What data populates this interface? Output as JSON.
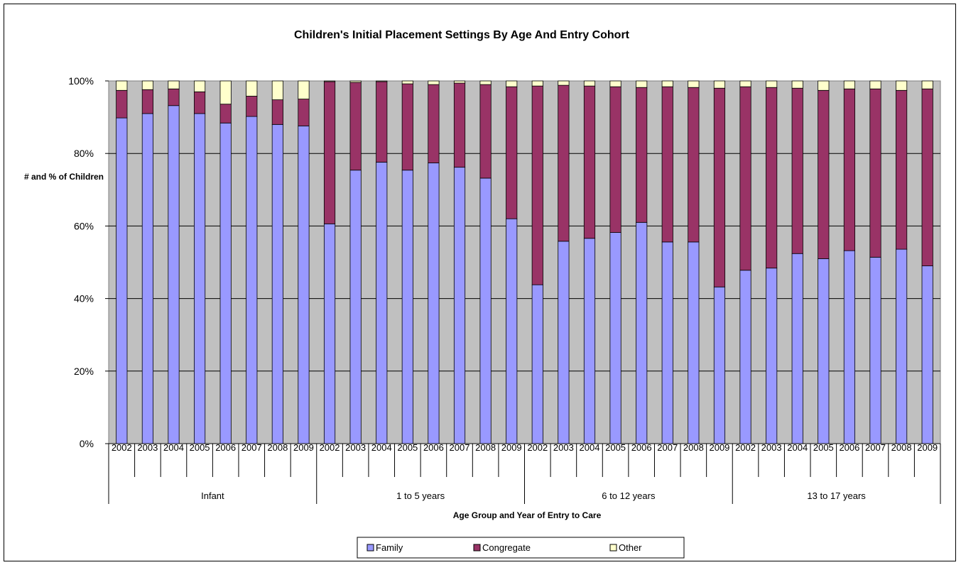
{
  "chart_data": {
    "type": "bar",
    "stacked": true,
    "percent": true,
    "title": "Children's Initial Placement Settings By Age And Entry Cohort",
    "xlabel": "Age Group and Year of Entry to Care",
    "ylabel": "# and % of Children",
    "ylim": [
      0,
      100
    ],
    "yticks": [
      "0%",
      "20%",
      "40%",
      "60%",
      "80%",
      "100%"
    ],
    "grid": true,
    "legend_position": "bottom",
    "groups": [
      {
        "label": "Infant",
        "years": [
          "2002",
          "2003",
          "2004",
          "2005",
          "2006",
          "2007",
          "2008",
          "2009"
        ]
      },
      {
        "label": "1 to 5 years",
        "years": [
          "2002",
          "2003",
          "2004",
          "2005",
          "2006",
          "2007",
          "2008",
          "2009"
        ]
      },
      {
        "label": "6 to 12 years",
        "years": [
          "2002",
          "2003",
          "2004",
          "2005",
          "2006",
          "2007",
          "2008",
          "2009"
        ]
      },
      {
        "label": "13 to 17 years",
        "years": [
          "2002",
          "2003",
          "2004",
          "2005",
          "2006",
          "2007",
          "2008",
          "2009"
        ]
      }
    ],
    "series": [
      {
        "name": "Family",
        "color": "#9999ff",
        "values": [
          89.8,
          91.0,
          93.2,
          91.0,
          88.4,
          90.2,
          88.0,
          87.6,
          60.6,
          75.4,
          77.6,
          75.4,
          77.4,
          76.2,
          73.2,
          62.0,
          43.8,
          55.8,
          56.6,
          58.2,
          61.0,
          55.6,
          55.6,
          43.2,
          47.8,
          48.4,
          52.4,
          51.0,
          53.2,
          51.4,
          53.6,
          49.0
        ]
      },
      {
        "name": "Congregate",
        "color": "#993366",
        "values": [
          7.6,
          6.6,
          4.6,
          6.0,
          5.2,
          5.6,
          6.8,
          7.4,
          39.2,
          24.2,
          22.2,
          23.8,
          21.6,
          23.2,
          25.8,
          36.4,
          54.8,
          43.0,
          42.0,
          40.2,
          37.2,
          42.8,
          42.6,
          54.8,
          50.6,
          49.8,
          45.6,
          46.4,
          44.6,
          46.4,
          43.8,
          48.8
        ]
      },
      {
        "name": "Other",
        "color": "#ffffcc",
        "values": [
          2.6,
          2.4,
          2.2,
          3.0,
          6.4,
          4.2,
          5.2,
          5.0,
          0.2,
          0.4,
          0.2,
          0.8,
          1.0,
          0.6,
          1.0,
          1.6,
          1.4,
          1.2,
          1.4,
          1.6,
          1.8,
          1.6,
          1.8,
          2.0,
          1.6,
          1.8,
          2.0,
          2.6,
          2.2,
          2.2,
          2.6,
          2.2
        ]
      }
    ]
  }
}
